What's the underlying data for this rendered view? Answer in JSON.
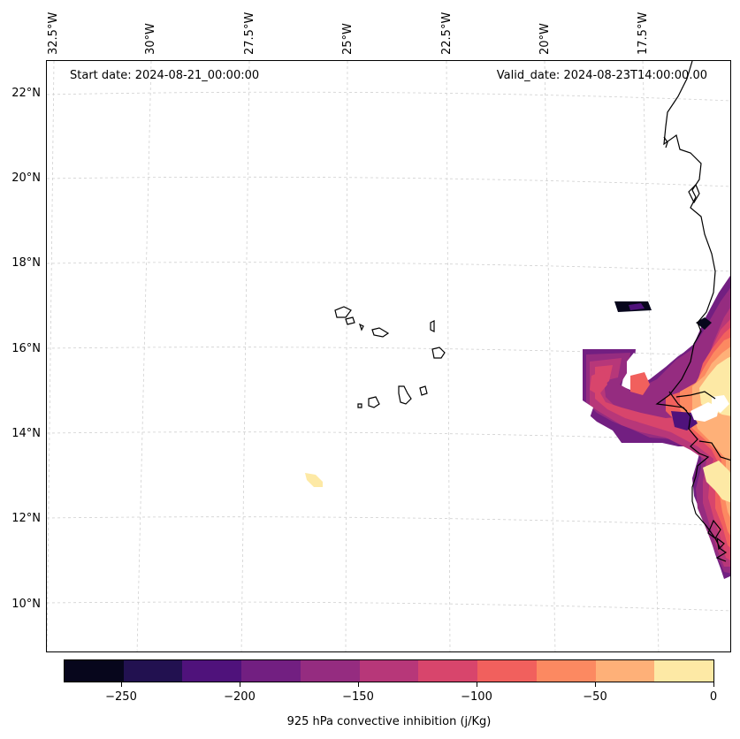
{
  "map": {
    "start_date": "Start date: 2024-08-21_00:00:00",
    "valid_date": "Valid_date: 2024-08-23T14:00:00.00",
    "lat_labels": [
      "22°N",
      "20°N",
      "18°N",
      "16°N",
      "14°N",
      "12°N",
      "10°N"
    ],
    "lon_labels": [
      "32.5°W",
      "30°W",
      "27.5°W",
      "25°W",
      "22.5°W",
      "20°W",
      "17.5°W"
    ],
    "gridlines": "dashed light gray"
  },
  "colorbar": {
    "title": "925 hPa convective inhibition (j/Kg)",
    "tick_labels": [
      "−250",
      "−200",
      "−150",
      "−100",
      "−50",
      "0"
    ],
    "levels": [
      -275,
      -250,
      -225,
      -200,
      -175,
      -150,
      -125,
      -100,
      -75,
      -50,
      -25,
      0
    ],
    "colors": [
      "#07061c",
      "#221150",
      "#4f127b",
      "#721f81",
      "#952c80",
      "#b73779",
      "#d8456c",
      "#f1605d",
      "#fc8961",
      "#feb078",
      "#fde9a5"
    ]
  }
}
